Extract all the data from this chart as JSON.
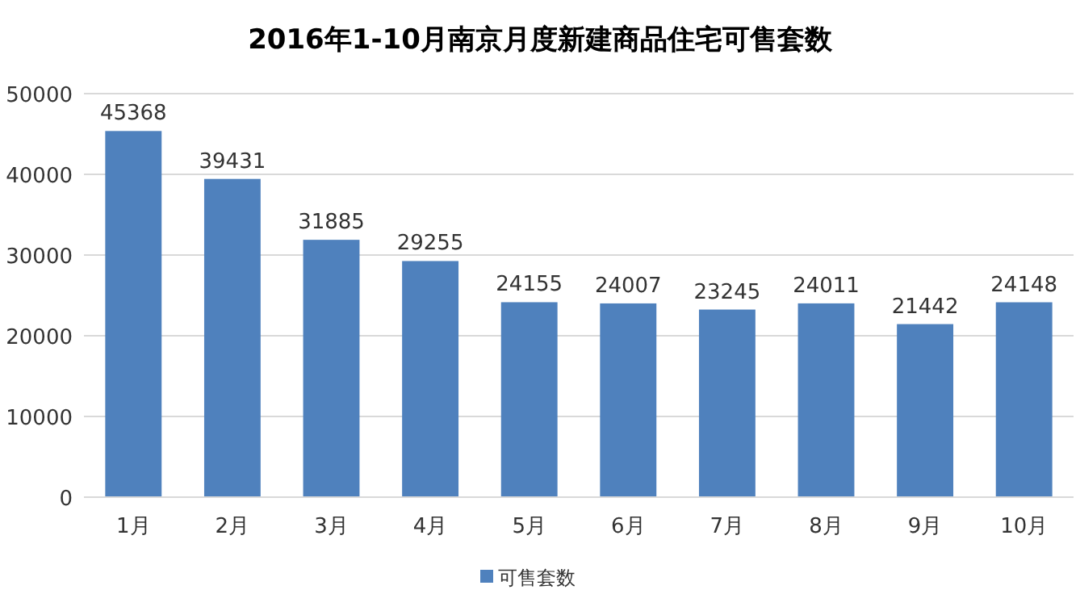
{
  "chart_data": {
    "type": "bar",
    "title": "2016年1-10月南京月度新建商品住宅可售套数",
    "categories": [
      "1月",
      "2月",
      "3月",
      "4月",
      "5月",
      "6月",
      "7月",
      "8月",
      "9月",
      "10月"
    ],
    "series": [
      {
        "name": "可售套数",
        "color": "#4f81bd",
        "values": [
          45368,
          39431,
          31885,
          29255,
          24155,
          24007,
          23245,
          24011,
          21442,
          24148
        ]
      }
    ],
    "ylim": [
      0,
      50000
    ],
    "yticks": [
      0,
      10000,
      20000,
      30000,
      40000,
      50000
    ],
    "grid": "y",
    "legend": "bottom",
    "data_labels": true
  }
}
